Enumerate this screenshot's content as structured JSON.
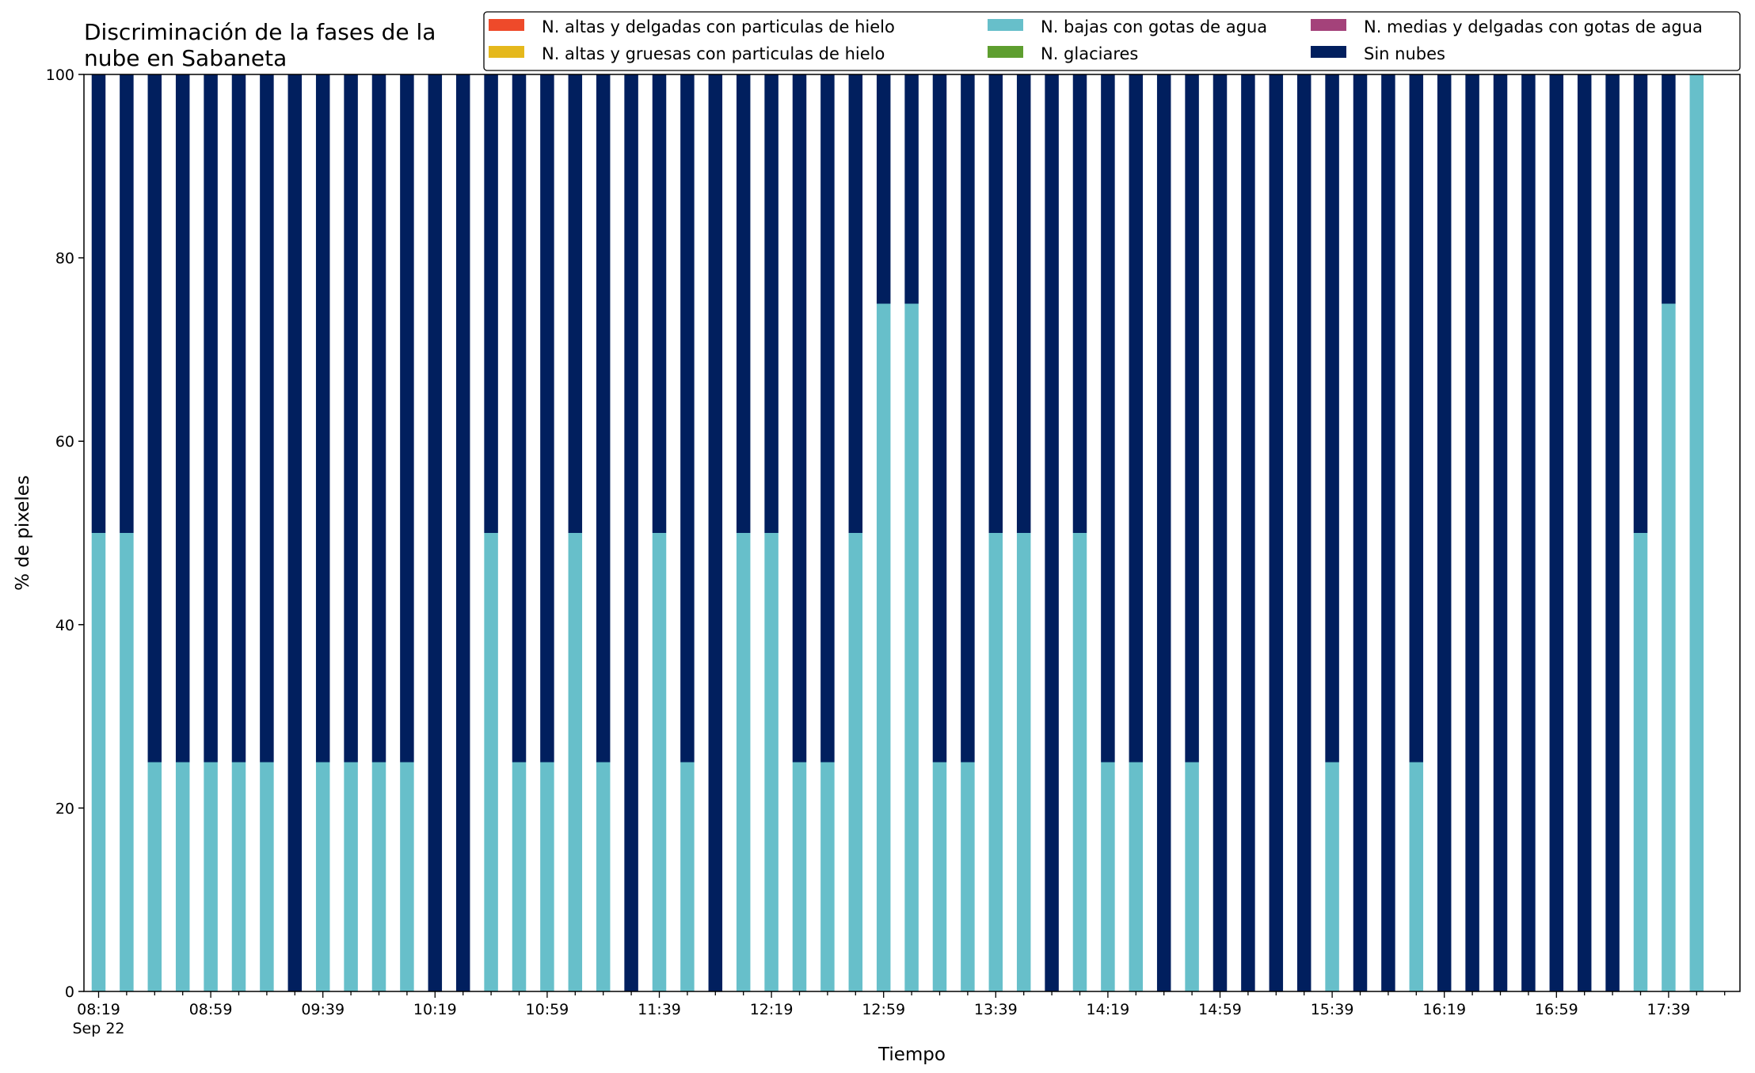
{
  "chart_data": {
    "type": "bar",
    "stacked": true,
    "title_lines": [
      "Discriminación de la fases de la",
      "nube en Sabaneta"
    ],
    "xlabel": "Tiempo",
    "ylabel": "% de pixeles",
    "ylim": [
      0,
      100
    ],
    "yticks": [
      0,
      20,
      40,
      60,
      80,
      100
    ],
    "grid": false,
    "legend_placement": "top-right",
    "x_first_sub_label": "Sep 22",
    "x_tick_labels": [
      {
        "index": 0,
        "label": "08:19"
      },
      {
        "index": 4,
        "label": "08:59"
      },
      {
        "index": 8,
        "label": "09:39"
      },
      {
        "index": 12,
        "label": "10:19"
      },
      {
        "index": 16,
        "label": "10:59"
      },
      {
        "index": 20,
        "label": "11:39"
      },
      {
        "index": 24,
        "label": "12:19"
      },
      {
        "index": 28,
        "label": "12:59"
      },
      {
        "index": 32,
        "label": "13:39"
      },
      {
        "index": 36,
        "label": "14:19"
      },
      {
        "index": 40,
        "label": "14:59"
      },
      {
        "index": 44,
        "label": "15:39"
      },
      {
        "index": 48,
        "label": "16:19"
      },
      {
        "index": 52,
        "label": "16:59"
      },
      {
        "index": 56,
        "label": "17:39"
      }
    ],
    "legend_columns": [
      [
        "N. altas y delgadas con particulas de hielo",
        "N. altas y gruesas con particulas de hielo"
      ],
      [
        "N. bajas con gotas de agua",
        "N. glaciares"
      ],
      [
        "N. medias y delgadas con gotas de agua",
        "Sin nubes"
      ]
    ],
    "series": [
      {
        "name": "N. altas y delgadas con particulas de hielo",
        "color": "#ee4a2a",
        "values": [
          0,
          0,
          0,
          0,
          0,
          0,
          0,
          0,
          0,
          0,
          0,
          0,
          0,
          0,
          0,
          0,
          0,
          0,
          0,
          0,
          0,
          0,
          0,
          0,
          0,
          0,
          0,
          0,
          0,
          0,
          0,
          0,
          0,
          0,
          0,
          0,
          0,
          0,
          0,
          0,
          0,
          0,
          0,
          0,
          0,
          0,
          0,
          0,
          0,
          0,
          0,
          0,
          0,
          0,
          0,
          0,
          0,
          0
        ]
      },
      {
        "name": "N. altas y gruesas con particulas de hielo",
        "color": "#e5b81c",
        "values": [
          0,
          0,
          0,
          0,
          0,
          0,
          0,
          0,
          0,
          0,
          0,
          0,
          0,
          0,
          0,
          0,
          0,
          0,
          0,
          0,
          0,
          0,
          0,
          0,
          0,
          0,
          0,
          0,
          0,
          0,
          0,
          0,
          0,
          0,
          0,
          0,
          0,
          0,
          0,
          0,
          0,
          0,
          0,
          0,
          0,
          0,
          0,
          0,
          0,
          0,
          0,
          0,
          0,
          0,
          0,
          0,
          0,
          0
        ]
      },
      {
        "name": "N. bajas con gotas de agua",
        "color": "#67bfca",
        "values": [
          50,
          50,
          25,
          25,
          25,
          25,
          25,
          0,
          25,
          25,
          25,
          25,
          0,
          0,
          50,
          25,
          25,
          50,
          25,
          0,
          50,
          25,
          0,
          50,
          50,
          25,
          25,
          50,
          75,
          75,
          25,
          25,
          50,
          50,
          0,
          50,
          25,
          25,
          0,
          25,
          0,
          0,
          0,
          0,
          25,
          0,
          0,
          25,
          0,
          0,
          0,
          0,
          0,
          0,
          0,
          50,
          75,
          100
        ]
      },
      {
        "name": "N. glaciares",
        "color": "#5e9e2f",
        "values": [
          0,
          0,
          0,
          0,
          0,
          0,
          0,
          0,
          0,
          0,
          0,
          0,
          0,
          0,
          0,
          0,
          0,
          0,
          0,
          0,
          0,
          0,
          0,
          0,
          0,
          0,
          0,
          0,
          0,
          0,
          0,
          0,
          0,
          0,
          0,
          0,
          0,
          0,
          0,
          0,
          0,
          0,
          0,
          0,
          0,
          0,
          0,
          0,
          0,
          0,
          0,
          0,
          0,
          0,
          0,
          0,
          0,
          0
        ]
      },
      {
        "name": "N. medias y delgadas con gotas de agua",
        "color": "#a4427a",
        "values": [
          0,
          0,
          0,
          0,
          0,
          0,
          0,
          0,
          0,
          0,
          0,
          0,
          0,
          0,
          0,
          0,
          0,
          0,
          0,
          0,
          0,
          0,
          0,
          0,
          0,
          0,
          0,
          0,
          0,
          0,
          0,
          0,
          0,
          0,
          0,
          0,
          0,
          0,
          0,
          0,
          0,
          0,
          0,
          0,
          0,
          0,
          0,
          0,
          0,
          0,
          0,
          0,
          0,
          0,
          0,
          0,
          0,
          0
        ]
      },
      {
        "name": "Sin nubes",
        "color": "#011f5e",
        "values": [
          50,
          50,
          75,
          75,
          75,
          75,
          75,
          100,
          75,
          75,
          75,
          75,
          100,
          100,
          50,
          75,
          75,
          50,
          75,
          100,
          50,
          75,
          100,
          50,
          50,
          75,
          75,
          50,
          25,
          25,
          75,
          75,
          50,
          50,
          100,
          50,
          75,
          75,
          100,
          75,
          100,
          100,
          100,
          100,
          75,
          100,
          100,
          75,
          100,
          100,
          100,
          100,
          100,
          100,
          100,
          50,
          25,
          0
        ]
      }
    ]
  }
}
